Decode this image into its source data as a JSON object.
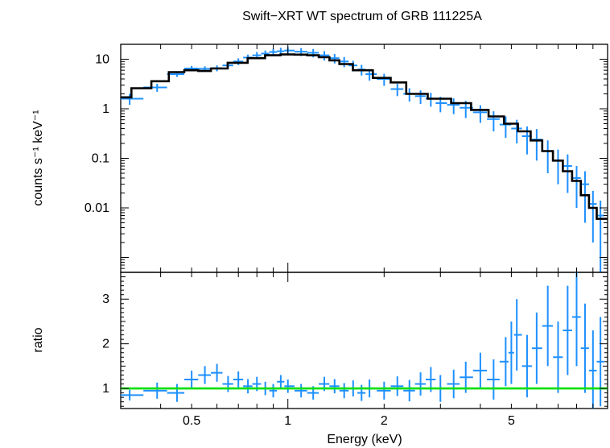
{
  "chart_data": [
    {
      "type": "scatter",
      "title": "Swift−XRT WT spectrum of GRB 111225A",
      "xlabel": "",
      "ylabel": "counts s⁻¹ keV⁻¹",
      "xscale": "log",
      "yscale": "log",
      "xlim": [
        0.3,
        10
      ],
      "ylim": [
        0.0005,
        20
      ],
      "ytick_labels": [
        "10",
        "1",
        "0.1",
        "0.01"
      ],
      "ytick_values": [
        10,
        1,
        0.1,
        0.01
      ],
      "series": [
        {
          "role": "data",
          "color": "#1e90ff",
          "x": [
            0.32,
            0.39,
            0.45,
            0.5,
            0.55,
            0.6,
            0.65,
            0.7,
            0.75,
            0.8,
            0.85,
            0.9,
            0.95,
            1.0,
            1.1,
            1.2,
            1.3,
            1.4,
            1.5,
            1.6,
            1.7,
            1.8,
            2.0,
            2.2,
            2.4,
            2.6,
            2.8,
            3.0,
            3.3,
            3.6,
            4.0,
            4.4,
            4.8,
            5.2,
            5.6,
            6.0,
            6.5,
            7.0,
            7.5,
            8.0,
            8.5,
            9.0,
            9.5
          ],
          "y": [
            1.6,
            2.7,
            5.0,
            6.5,
            6.4,
            6.6,
            7.5,
            9.0,
            10.8,
            12.0,
            13.0,
            14.0,
            14.5,
            15.0,
            14.2,
            13.5,
            12.0,
            10.5,
            9.0,
            7.5,
            6.2,
            5.0,
            4.0,
            2.5,
            2.0,
            1.8,
            1.6,
            1.3,
            1.2,
            1.05,
            0.85,
            0.62,
            0.48,
            0.4,
            0.28,
            0.24,
            0.14,
            0.09,
            0.07,
            0.04,
            0.03,
            0.012,
            0.007
          ],
          "yerr": [
            0.4,
            0.5,
            0.6,
            0.8,
            0.8,
            0.9,
            1.1,
            1.4,
            1.6,
            2.0,
            2.0,
            2.2,
            2.5,
            2.6,
            2.6,
            2.6,
            2.6,
            2.3,
            2.1,
            1.8,
            1.5,
            1.3,
            1.1,
            0.7,
            0.6,
            0.55,
            0.5,
            0.45,
            0.42,
            0.4,
            0.33,
            0.27,
            0.22,
            0.2,
            0.16,
            0.15,
            0.09,
            0.06,
            0.05,
            0.03,
            0.025,
            0.01,
            0.007
          ]
        },
        {
          "role": "model",
          "color": "#000000",
          "x": [
            0.3,
            0.35,
            0.4,
            0.45,
            0.5,
            0.55,
            0.6,
            0.7,
            0.8,
            0.9,
            1.0,
            1.1,
            1.2,
            1.3,
            1.4,
            1.5,
            1.7,
            2.0,
            2.2,
            2.5,
            3.0,
            3.5,
            4.0,
            4.5,
            5.0,
            5.5,
            6.0,
            6.5,
            7.0,
            7.5,
            8.0,
            8.5,
            9.0,
            9.5,
            10.0
          ],
          "y": [
            1.7,
            2.6,
            3.6,
            5.5,
            6.0,
            5.8,
            6.5,
            8.5,
            10.5,
            12.0,
            12.5,
            12.4,
            12.0,
            11.0,
            9.5,
            8.0,
            6.0,
            4.2,
            3.4,
            2.0,
            1.6,
            1.3,
            0.95,
            0.7,
            0.5,
            0.35,
            0.23,
            0.14,
            0.09,
            0.055,
            0.035,
            0.018,
            0.01,
            0.006,
            0.006
          ]
        }
      ]
    },
    {
      "type": "scatter",
      "title": "",
      "xlabel": "Energy (keV)",
      "ylabel": "ratio",
      "xscale": "log",
      "yscale": "linear",
      "xlim": [
        0.3,
        10
      ],
      "ylim": [
        0.55,
        3.6
      ],
      "xtick_labels": [
        "0.5",
        "1",
        "2",
        "5"
      ],
      "xtick_values": [
        0.5,
        1,
        2,
        5
      ],
      "ytick_labels": [
        "1",
        "2",
        "3"
      ],
      "ytick_values": [
        1,
        2,
        3
      ],
      "reference_line": {
        "y": 1,
        "color": "#00e000"
      },
      "series": [
        {
          "role": "ratio",
          "color": "#1e90ff",
          "x": [
            0.32,
            0.39,
            0.45,
            0.5,
            0.55,
            0.6,
            0.65,
            0.7,
            0.75,
            0.8,
            0.85,
            0.9,
            0.95,
            1.0,
            1.1,
            1.2,
            1.3,
            1.4,
            1.5,
            1.6,
            1.7,
            1.8,
            2.0,
            2.2,
            2.4,
            2.6,
            2.8,
            3.0,
            3.3,
            3.6,
            4.0,
            4.4,
            4.8,
            5.0,
            5.2,
            5.6,
            6.0,
            6.5,
            7.0,
            7.5,
            8.0,
            8.5,
            9.0,
            9.5
          ],
          "y": [
            0.85,
            0.95,
            0.9,
            1.2,
            1.3,
            1.35,
            1.1,
            1.2,
            1.05,
            1.1,
            1.0,
            0.95,
            1.15,
            1.05,
            0.95,
            0.9,
            1.1,
            1.05,
            0.95,
            1.0,
            0.9,
            1.0,
            0.95,
            1.05,
            0.95,
            1.1,
            1.2,
            1.0,
            1.1,
            1.25,
            1.4,
            1.2,
            1.6,
            1.8,
            2.2,
            1.5,
            1.9,
            2.4,
            1.7,
            2.3,
            2.6,
            1.9,
            1.4,
            1.6
          ],
          "yerr": [
            0.12,
            0.18,
            0.2,
            0.2,
            0.2,
            0.2,
            0.18,
            0.18,
            0.16,
            0.16,
            0.15,
            0.15,
            0.15,
            0.15,
            0.15,
            0.15,
            0.16,
            0.16,
            0.17,
            0.18,
            0.18,
            0.2,
            0.2,
            0.22,
            0.24,
            0.26,
            0.28,
            0.3,
            0.32,
            0.35,
            0.4,
            0.45,
            0.55,
            0.7,
            0.8,
            0.7,
            0.8,
            0.9,
            0.8,
            1.0,
            1.1,
            1.0,
            0.9,
            1.0
          ]
        }
      ]
    }
  ]
}
